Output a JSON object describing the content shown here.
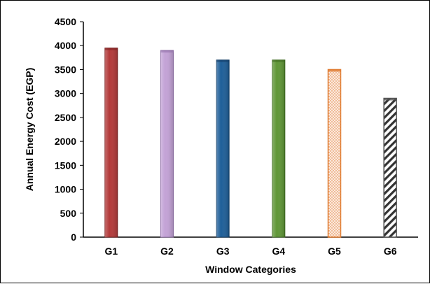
{
  "chart_data": {
    "type": "bar",
    "title": "",
    "xlabel": "Window Categories",
    "ylabel": "Annual Energy Cost (EGP)",
    "categories": [
      "G1",
      "G2",
      "G3",
      "G4",
      "G5",
      "G6"
    ],
    "values": [
      3950,
      3900,
      3700,
      3700,
      3500,
      2900
    ],
    "ylim": [
      0,
      4500
    ],
    "yticks": [
      0,
      500,
      1000,
      1500,
      2000,
      2500,
      3000,
      3500,
      4000,
      4500
    ],
    "grid": false,
    "legend": "none",
    "bar_styles": [
      {
        "fill": "#b33a3a",
        "edge": "#7a1f1f",
        "pattern": "solid"
      },
      {
        "fill": "#c3a2d6",
        "edge": "#8e6ca6",
        "pattern": "solid"
      },
      {
        "fill": "#1f5f99",
        "edge": "#123d66",
        "pattern": "solid"
      },
      {
        "fill": "#5f9636",
        "edge": "#3e6a1f",
        "pattern": "solid"
      },
      {
        "fill": "#f6dccb",
        "edge": "#e07b30",
        "pattern": "dots"
      },
      {
        "fill": "#ffffff",
        "edge": "#555555",
        "pattern": "diagonal"
      }
    ]
  }
}
